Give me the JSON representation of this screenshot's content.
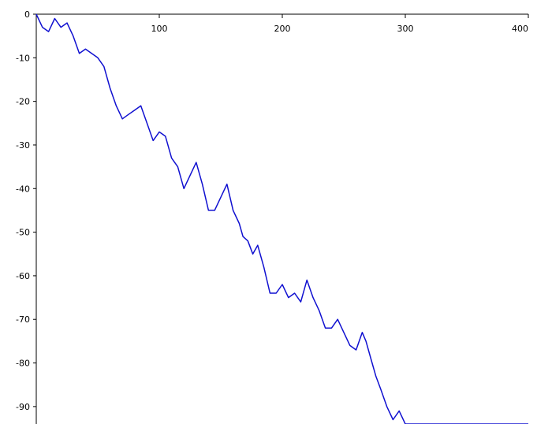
{
  "chart_data": {
    "type": "line",
    "title": "",
    "xlabel": "",
    "ylabel": "",
    "xlim": [
      0,
      400
    ],
    "ylim": [
      -94,
      0
    ],
    "x_ticks": [
      {
        "value": 100,
        "label": "100"
      },
      {
        "value": 200,
        "label": "200"
      },
      {
        "value": 300,
        "label": "300"
      },
      {
        "value": 400,
        "label": "400"
      }
    ],
    "y_ticks": [
      {
        "value": 0,
        "label": "0"
      },
      {
        "value": -10,
        "label": "-10"
      },
      {
        "value": -20,
        "label": "-20"
      },
      {
        "value": -30,
        "label": "-30"
      },
      {
        "value": -40,
        "label": "-40"
      },
      {
        "value": -50,
        "label": "-50"
      },
      {
        "value": -60,
        "label": "-60"
      },
      {
        "value": -70,
        "label": "-70"
      },
      {
        "value": -80,
        "label": "-80"
      },
      {
        "value": -90,
        "label": "-90"
      }
    ],
    "grid": false,
    "legend": "none",
    "series": [
      {
        "color": "#1010d0",
        "x": [
          0,
          5,
          10,
          15,
          20,
          25,
          30,
          35,
          40,
          45,
          50,
          55,
          60,
          65,
          70,
          75,
          80,
          85,
          90,
          95,
          100,
          105,
          110,
          115,
          120,
          125,
          130,
          135,
          140,
          145,
          150,
          155,
          160,
          165,
          168,
          172,
          176,
          180,
          185,
          190,
          195,
          200,
          205,
          210,
          215,
          220,
          225,
          230,
          235,
          240,
          245,
          250,
          255,
          260,
          265,
          268,
          272,
          276,
          280,
          285,
          290,
          295,
          300,
          305,
          310,
          315,
          320,
          325,
          330,
          335,
          340,
          345,
          350,
          355,
          360,
          365,
          370,
          375,
          380,
          385,
          390,
          395,
          400
        ],
        "y": [
          0,
          -3,
          -4,
          -1,
          -3,
          -2,
          -5,
          -9,
          -8,
          -9,
          -10,
          -12,
          -17,
          -21,
          -24,
          -23,
          -22,
          -21,
          -25,
          -29,
          -27,
          -28,
          -33,
          -35,
          -40,
          -37,
          -34,
          -39,
          -45,
          -45,
          -42,
          -39,
          -45,
          -48,
          -51,
          -52,
          -55,
          -53,
          -58,
          -64,
          -64,
          -62,
          -65,
          -64,
          -66,
          -61,
          -65,
          -68,
          -72,
          -72,
          -70,
          -73,
          -76,
          -77,
          -73,
          -75,
          -79,
          -83,
          -86,
          -90,
          -93,
          -91,
          -94,
          -94,
          -94,
          -94,
          -94,
          -94,
          -94,
          -94,
          -94,
          -94,
          -94,
          -94,
          -94,
          -94,
          -94,
          -94,
          -94,
          -94,
          -94,
          -94,
          -94
        ]
      }
    ]
  }
}
